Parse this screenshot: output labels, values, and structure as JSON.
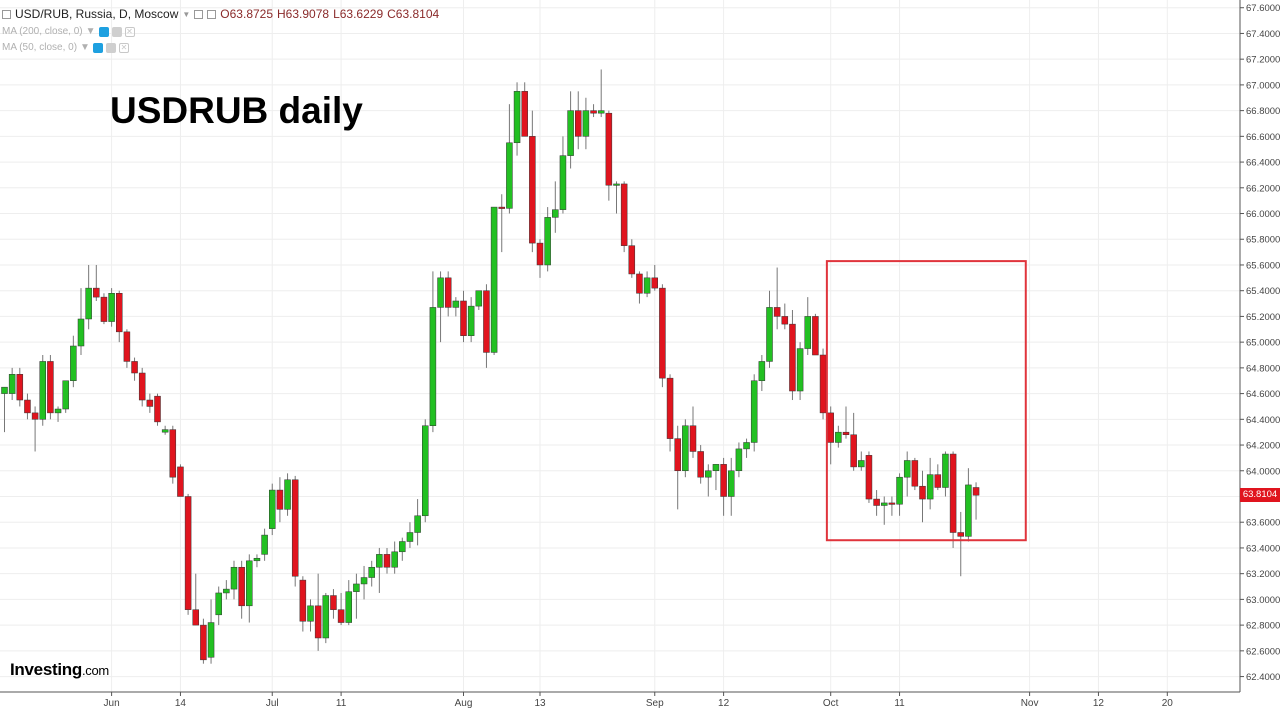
{
  "header": {
    "symbol": "USD/RUB, Russia, D, Moscow",
    "open": "O63.8725",
    "high": "H63.9078",
    "low": "L63.6229",
    "close": "C63.8104"
  },
  "indicators": [
    {
      "label": "MA (200, close, 0)"
    },
    {
      "label": "MA (50, close, 0)"
    }
  ],
  "overlay_title": "USDRUB daily",
  "logo": {
    "main": "Investing",
    "suffix": ".com"
  },
  "last_price": "63.8104",
  "colors": {
    "up": "#22c022",
    "down": "#e0141e",
    "highlight": "#e0343c",
    "grid": "#eeeeee"
  },
  "chart_data": {
    "type": "candlestick",
    "title": "USDRUB daily",
    "ylim": [
      62.28,
      67.66
    ],
    "y_ticks": [
      "67.6000",
      "67.4000",
      "67.2000",
      "67.0000",
      "66.8000",
      "66.6000",
      "66.4000",
      "66.2000",
      "66.0000",
      "65.8000",
      "65.6000",
      "65.4000",
      "65.2000",
      "65.0000",
      "64.8000",
      "64.6000",
      "64.4000",
      "64.2000",
      "64.0000",
      "63.8000",
      "63.6000",
      "63.4000",
      "63.2000",
      "63.0000",
      "62.8000",
      "62.6000",
      "62.4000"
    ],
    "x_ticks": [
      {
        "label": "Jun",
        "index": 14
      },
      {
        "label": "14",
        "index": 23
      },
      {
        "label": "Jul",
        "index": 35
      },
      {
        "label": "11",
        "index": 44
      },
      {
        "label": "Aug",
        "index": 60
      },
      {
        "label": "13",
        "index": 70
      },
      {
        "label": "Sep",
        "index": 85
      },
      {
        "label": "12",
        "index": 94
      },
      {
        "label": "Oct",
        "index": 108
      },
      {
        "label": "11",
        "index": 117
      },
      {
        "label": "Nov",
        "index": 134
      },
      {
        "label": "12",
        "index": 143
      },
      {
        "label": "20",
        "index": 152
      }
    ],
    "highlight_box": {
      "start_index": 107.5,
      "end_index": 133.5,
      "top": 65.63,
      "bottom": 63.46
    },
    "candles": [
      {
        "o": 64.6,
        "h": 64.65,
        "l": 64.3,
        "c": 64.65
      },
      {
        "o": 64.6,
        "h": 64.8,
        "l": 64.55,
        "c": 64.75
      },
      {
        "o": 64.75,
        "h": 64.8,
        "l": 64.5,
        "c": 64.55
      },
      {
        "o": 64.55,
        "h": 64.6,
        "l": 64.4,
        "c": 64.45
      },
      {
        "o": 64.45,
        "h": 64.5,
        "l": 64.15,
        "c": 64.4
      },
      {
        "o": 64.4,
        "h": 64.9,
        "l": 64.35,
        "c": 64.85
      },
      {
        "o": 64.85,
        "h": 64.9,
        "l": 64.4,
        "c": 64.45
      },
      {
        "o": 64.45,
        "h": 64.5,
        "l": 64.38,
        "c": 64.48
      },
      {
        "o": 64.48,
        "h": 64.7,
        "l": 64.45,
        "c": 64.7
      },
      {
        "o": 64.7,
        "h": 65.05,
        "l": 64.65,
        "c": 64.97
      },
      {
        "o": 64.97,
        "h": 65.42,
        "l": 64.9,
        "c": 65.18
      },
      {
        "o": 65.18,
        "h": 65.6,
        "l": 65.1,
        "c": 65.42
      },
      {
        "o": 65.42,
        "h": 65.6,
        "l": 65.32,
        "c": 65.35
      },
      {
        "o": 65.35,
        "h": 65.38,
        "l": 65.14,
        "c": 65.16
      },
      {
        "o": 65.16,
        "h": 65.42,
        "l": 65.12,
        "c": 65.38
      },
      {
        "o": 65.38,
        "h": 65.4,
        "l": 65.0,
        "c": 65.08
      },
      {
        "o": 65.08,
        "h": 65.1,
        "l": 64.8,
        "c": 64.85
      },
      {
        "o": 64.85,
        "h": 64.88,
        "l": 64.7,
        "c": 64.76
      },
      {
        "o": 64.76,
        "h": 64.8,
        "l": 64.5,
        "c": 64.55
      },
      {
        "o": 64.55,
        "h": 64.6,
        "l": 64.45,
        "c": 64.5
      },
      {
        "o": 64.58,
        "h": 64.6,
        "l": 64.35,
        "c": 64.38
      },
      {
        "o": 64.3,
        "h": 64.35,
        "l": 64.28,
        "c": 64.32
      },
      {
        "o": 64.32,
        "h": 64.35,
        "l": 63.9,
        "c": 63.95
      },
      {
        "o": 64.03,
        "h": 64.05,
        "l": 63.8,
        "c": 63.8
      },
      {
        "o": 63.8,
        "h": 63.82,
        "l": 62.88,
        "c": 62.92
      },
      {
        "o": 62.92,
        "h": 63.2,
        "l": 62.8,
        "c": 62.8
      },
      {
        "o": 62.8,
        "h": 62.85,
        "l": 62.5,
        "c": 62.53
      },
      {
        "o": 62.55,
        "h": 63.0,
        "l": 62.5,
        "c": 62.82
      },
      {
        "o": 62.88,
        "h": 63.1,
        "l": 62.8,
        "c": 63.05
      },
      {
        "o": 63.05,
        "h": 63.15,
        "l": 63.0,
        "c": 63.08
      },
      {
        "o": 63.08,
        "h": 63.3,
        "l": 63.0,
        "c": 63.25
      },
      {
        "o": 63.25,
        "h": 63.3,
        "l": 62.85,
        "c": 62.95
      },
      {
        "o": 62.95,
        "h": 63.35,
        "l": 62.82,
        "c": 63.3
      },
      {
        "o": 63.3,
        "h": 63.35,
        "l": 63.25,
        "c": 63.32
      },
      {
        "o": 63.35,
        "h": 63.55,
        "l": 63.3,
        "c": 63.5
      },
      {
        "o": 63.55,
        "h": 63.9,
        "l": 63.5,
        "c": 63.85
      },
      {
        "o": 63.85,
        "h": 63.95,
        "l": 63.6,
        "c": 63.7
      },
      {
        "o": 63.7,
        "h": 63.98,
        "l": 63.65,
        "c": 63.93
      },
      {
        "o": 63.93,
        "h": 63.96,
        "l": 63.1,
        "c": 63.18
      },
      {
        "o": 63.15,
        "h": 63.18,
        "l": 62.75,
        "c": 62.83
      },
      {
        "o": 62.83,
        "h": 63.0,
        "l": 62.75,
        "c": 62.95
      },
      {
        "o": 62.95,
        "h": 63.2,
        "l": 62.6,
        "c": 62.7
      },
      {
        "o": 62.7,
        "h": 63.05,
        "l": 62.66,
        "c": 63.03
      },
      {
        "o": 63.03,
        "h": 63.08,
        "l": 62.85,
        "c": 62.92
      },
      {
        "o": 62.92,
        "h": 63.05,
        "l": 62.8,
        "c": 62.82
      },
      {
        "o": 62.82,
        "h": 63.15,
        "l": 62.8,
        "c": 63.06
      },
      {
        "o": 63.06,
        "h": 63.2,
        "l": 62.85,
        "c": 63.12
      },
      {
        "o": 63.12,
        "h": 63.26,
        "l": 63.0,
        "c": 63.17
      },
      {
        "o": 63.17,
        "h": 63.3,
        "l": 63.1,
        "c": 63.25
      },
      {
        "o": 63.25,
        "h": 63.4,
        "l": 63.05,
        "c": 63.35
      },
      {
        "o": 63.35,
        "h": 63.4,
        "l": 63.2,
        "c": 63.25
      },
      {
        "o": 63.25,
        "h": 63.45,
        "l": 63.2,
        "c": 63.37
      },
      {
        "o": 63.37,
        "h": 63.48,
        "l": 63.3,
        "c": 63.45
      },
      {
        "o": 63.45,
        "h": 63.6,
        "l": 63.4,
        "c": 63.52
      },
      {
        "o": 63.52,
        "h": 63.78,
        "l": 63.42,
        "c": 63.65
      },
      {
        "o": 63.65,
        "h": 64.4,
        "l": 63.6,
        "c": 64.35
      },
      {
        "o": 64.35,
        "h": 65.55,
        "l": 64.3,
        "c": 65.27
      },
      {
        "o": 65.27,
        "h": 65.55,
        "l": 65.0,
        "c": 65.5
      },
      {
        "o": 65.5,
        "h": 65.55,
        "l": 65.2,
        "c": 65.27
      },
      {
        "o": 65.27,
        "h": 65.35,
        "l": 65.2,
        "c": 65.32
      },
      {
        "o": 65.32,
        "h": 65.4,
        "l": 65.0,
        "c": 65.05
      },
      {
        "o": 65.05,
        "h": 65.35,
        "l": 65.0,
        "c": 65.28
      },
      {
        "o": 65.28,
        "h": 65.4,
        "l": 65.25,
        "c": 65.4
      },
      {
        "o": 65.4,
        "h": 65.45,
        "l": 64.8,
        "c": 64.92
      },
      {
        "o": 64.92,
        "h": 66.05,
        "l": 64.9,
        "c": 66.05
      },
      {
        "o": 66.05,
        "h": 66.15,
        "l": 65.7,
        "c": 66.04
      },
      {
        "o": 66.04,
        "h": 66.85,
        "l": 66.0,
        "c": 66.55
      },
      {
        "o": 66.55,
        "h": 67.02,
        "l": 66.45,
        "c": 66.95
      },
      {
        "o": 66.95,
        "h": 67.02,
        "l": 66.6,
        "c": 66.6
      },
      {
        "o": 66.6,
        "h": 66.8,
        "l": 65.7,
        "c": 65.77
      },
      {
        "o": 65.77,
        "h": 65.8,
        "l": 65.5,
        "c": 65.6
      },
      {
        "o": 65.6,
        "h": 66.05,
        "l": 65.55,
        "c": 65.97
      },
      {
        "o": 65.97,
        "h": 66.25,
        "l": 65.85,
        "c": 66.03
      },
      {
        "o": 66.03,
        "h": 66.6,
        "l": 66.0,
        "c": 66.45
      },
      {
        "o": 66.45,
        "h": 66.95,
        "l": 66.35,
        "c": 66.8
      },
      {
        "o": 66.8,
        "h": 66.95,
        "l": 66.5,
        "c": 66.6
      },
      {
        "o": 66.6,
        "h": 66.9,
        "l": 66.5,
        "c": 66.8
      },
      {
        "o": 66.8,
        "h": 66.85,
        "l": 66.75,
        "c": 66.78
      },
      {
        "o": 66.78,
        "h": 67.12,
        "l": 66.75,
        "c": 66.8
      },
      {
        "o": 66.78,
        "h": 66.8,
        "l": 66.1,
        "c": 66.22
      },
      {
        "o": 66.22,
        "h": 66.25,
        "l": 66.0,
        "c": 66.23
      },
      {
        "o": 66.23,
        "h": 66.25,
        "l": 65.7,
        "c": 65.75
      },
      {
        "o": 65.75,
        "h": 65.8,
        "l": 65.5,
        "c": 65.53
      },
      {
        "o": 65.53,
        "h": 65.55,
        "l": 65.3,
        "c": 65.38
      },
      {
        "o": 65.38,
        "h": 65.55,
        "l": 65.35,
        "c": 65.5
      },
      {
        "o": 65.5,
        "h": 65.6,
        "l": 65.4,
        "c": 65.42
      },
      {
        "o": 65.42,
        "h": 65.45,
        "l": 64.65,
        "c": 64.72
      },
      {
        "o": 64.72,
        "h": 64.75,
        "l": 64.15,
        "c": 64.25
      },
      {
        "o": 64.25,
        "h": 64.35,
        "l": 63.7,
        "c": 64.0
      },
      {
        "o": 64.0,
        "h": 64.4,
        "l": 63.95,
        "c": 64.35
      },
      {
        "o": 64.35,
        "h": 64.5,
        "l": 64.1,
        "c": 64.15
      },
      {
        "o": 64.15,
        "h": 64.2,
        "l": 63.9,
        "c": 63.95
      },
      {
        "o": 63.95,
        "h": 64.05,
        "l": 63.8,
        "c": 64.0
      },
      {
        "o": 64.0,
        "h": 64.05,
        "l": 63.85,
        "c": 64.05
      },
      {
        "o": 64.05,
        "h": 64.1,
        "l": 63.65,
        "c": 63.8
      },
      {
        "o": 63.8,
        "h": 64.1,
        "l": 63.65,
        "c": 64.0
      },
      {
        "o": 64.0,
        "h": 64.22,
        "l": 63.95,
        "c": 64.17
      },
      {
        "o": 64.17,
        "h": 64.25,
        "l": 64.1,
        "c": 64.22
      },
      {
        "o": 64.22,
        "h": 64.75,
        "l": 64.15,
        "c": 64.7
      },
      {
        "o": 64.7,
        "h": 64.9,
        "l": 64.62,
        "c": 64.85
      },
      {
        "o": 64.85,
        "h": 65.4,
        "l": 64.8,
        "c": 65.27
      },
      {
        "o": 65.27,
        "h": 65.58,
        "l": 65.1,
        "c": 65.2
      },
      {
        "o": 65.2,
        "h": 65.3,
        "l": 65.1,
        "c": 65.14
      },
      {
        "o": 65.14,
        "h": 65.25,
        "l": 64.55,
        "c": 64.62
      },
      {
        "o": 64.62,
        "h": 65.0,
        "l": 64.55,
        "c": 64.95
      },
      {
        "o": 64.95,
        "h": 65.35,
        "l": 64.9,
        "c": 65.2
      },
      {
        "o": 65.2,
        "h": 65.22,
        "l": 64.9,
        "c": 64.9
      },
      {
        "o": 64.9,
        "h": 64.95,
        "l": 64.4,
        "c": 64.45
      },
      {
        "o": 64.45,
        "h": 64.5,
        "l": 64.05,
        "c": 64.22
      },
      {
        "o": 64.22,
        "h": 64.35,
        "l": 64.18,
        "c": 64.3
      },
      {
        "o": 64.3,
        "h": 64.5,
        "l": 64.25,
        "c": 64.28
      },
      {
        "o": 64.28,
        "h": 64.45,
        "l": 64.0,
        "c": 64.03
      },
      {
        "o": 64.03,
        "h": 64.15,
        "l": 64.0,
        "c": 64.08
      },
      {
        "o": 64.12,
        "h": 64.15,
        "l": 63.75,
        "c": 63.78
      },
      {
        "o": 63.78,
        "h": 63.85,
        "l": 63.65,
        "c": 63.73
      },
      {
        "o": 63.73,
        "h": 63.8,
        "l": 63.58,
        "c": 63.75
      },
      {
        "o": 63.75,
        "h": 63.8,
        "l": 63.65,
        "c": 63.74
      },
      {
        "o": 63.74,
        "h": 63.98,
        "l": 63.65,
        "c": 63.95
      },
      {
        "o": 63.95,
        "h": 64.15,
        "l": 63.8,
        "c": 64.08
      },
      {
        "o": 64.08,
        "h": 64.1,
        "l": 63.85,
        "c": 63.88
      },
      {
        "o": 63.88,
        "h": 64.0,
        "l": 63.6,
        "c": 63.78
      },
      {
        "o": 63.78,
        "h": 64.1,
        "l": 63.7,
        "c": 63.97
      },
      {
        "o": 63.97,
        "h": 64.05,
        "l": 63.85,
        "c": 63.87
      },
      {
        "o": 63.87,
        "h": 64.15,
        "l": 63.8,
        "c": 64.13
      },
      {
        "o": 64.13,
        "h": 64.15,
        "l": 63.4,
        "c": 63.52
      },
      {
        "o": 63.52,
        "h": 63.68,
        "l": 63.18,
        "c": 63.49
      },
      {
        "o": 63.49,
        "h": 64.02,
        "l": 63.45,
        "c": 63.89
      },
      {
        "o": 63.87,
        "h": 63.91,
        "l": 63.62,
        "c": 63.81
      }
    ]
  }
}
